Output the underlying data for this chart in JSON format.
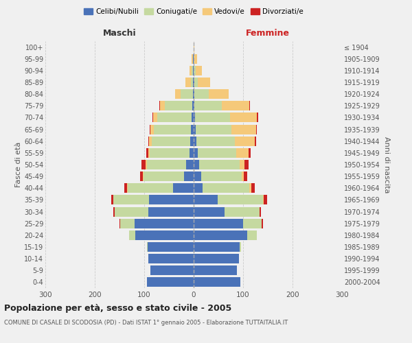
{
  "age_groups": [
    "0-4",
    "5-9",
    "10-14",
    "15-19",
    "20-24",
    "25-29",
    "30-34",
    "35-39",
    "40-44",
    "45-49",
    "50-54",
    "55-59",
    "60-64",
    "65-69",
    "70-74",
    "75-79",
    "80-84",
    "85-89",
    "90-94",
    "95-99",
    "100+"
  ],
  "birth_years": [
    "2000-2004",
    "1995-1999",
    "1990-1994",
    "1985-1989",
    "1980-1984",
    "1975-1979",
    "1970-1974",
    "1965-1969",
    "1960-1964",
    "1955-1959",
    "1950-1954",
    "1945-1949",
    "1940-1944",
    "1935-1939",
    "1930-1934",
    "1925-1929",
    "1920-1924",
    "1915-1919",
    "1910-1914",
    "1905-1909",
    "≤ 1904"
  ],
  "colors": {
    "celibi": "#4a72b8",
    "coniugati": "#c5d9a0",
    "vedovi": "#f5c97a",
    "divorziati": "#cc2222"
  },
  "maschi": {
    "celibi": [
      95,
      88,
      92,
      93,
      118,
      120,
      92,
      90,
      42,
      20,
      15,
      9,
      7,
      5,
      4,
      3,
      2,
      1,
      1,
      1,
      0
    ],
    "coniugati": [
      0,
      0,
      0,
      2,
      12,
      28,
      68,
      72,
      92,
      82,
      80,
      80,
      78,
      75,
      70,
      55,
      25,
      5,
      3,
      1,
      0
    ],
    "vedovi": [
      0,
      0,
      0,
      0,
      0,
      0,
      0,
      0,
      1,
      1,
      2,
      3,
      5,
      7,
      8,
      10,
      10,
      10,
      5,
      2,
      0
    ],
    "divorziati": [
      0,
      0,
      0,
      0,
      0,
      2,
      2,
      5,
      5,
      5,
      8,
      4,
      2,
      2,
      2,
      2,
      0,
      0,
      0,
      0,
      0
    ]
  },
  "femmine": {
    "nubili": [
      95,
      88,
      92,
      93,
      108,
      100,
      62,
      48,
      18,
      15,
      11,
      8,
      6,
      4,
      3,
      2,
      1,
      1,
      0,
      0,
      0
    ],
    "coniugate": [
      0,
      0,
      0,
      3,
      20,
      38,
      72,
      92,
      95,
      82,
      82,
      78,
      78,
      72,
      70,
      55,
      30,
      8,
      4,
      2,
      0
    ],
    "vedove": [
      0,
      0,
      0,
      0,
      0,
      0,
      0,
      2,
      3,
      5,
      10,
      25,
      40,
      50,
      55,
      55,
      40,
      25,
      12,
      5,
      1
    ],
    "divorziate": [
      0,
      0,
      0,
      0,
      0,
      2,
      2,
      7,
      8,
      7,
      8,
      4,
      2,
      2,
      2,
      2,
      0,
      0,
      0,
      0,
      0
    ]
  },
  "title": "Popolazione per età, sesso e stato civile - 2005",
  "subtitle": "COMUNE DI CASALE DI SCODOSIA (PD) - Dati ISTAT 1° gennaio 2005 - Elaborazione TUTTAITALIA.IT",
  "xlabel_left": "Maschi",
  "xlabel_right": "Femmine",
  "ylabel_left": "Fasce di età",
  "ylabel_right": "Anni di nascita",
  "xlim": 300,
  "legend_labels": [
    "Celibi/Nubili",
    "Coniugati/e",
    "Vedovi/e",
    "Divorziati/e"
  ],
  "background_color": "#f0f0f0",
  "grid_color": "#cccccc"
}
